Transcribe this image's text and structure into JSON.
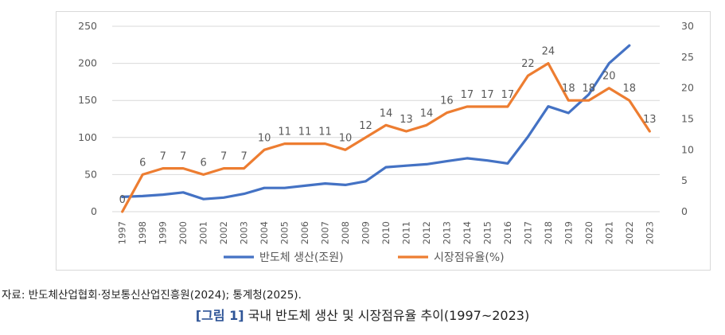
{
  "chart_data": {
    "type": "line",
    "categories": [
      "1997",
      "1998",
      "1999",
      "2000",
      "2001",
      "2002",
      "2003",
      "2004",
      "2005",
      "2006",
      "2007",
      "2008",
      "2009",
      "2010",
      "2011",
      "2012",
      "2013",
      "2014",
      "2015",
      "2016",
      "2017",
      "2018",
      "2019",
      "2020",
      "2021",
      "2022",
      "2023"
    ],
    "series": [
      {
        "name": "반도체 생산(조원)",
        "axis": "left",
        "color": "#4472c4",
        "values": [
          20,
          21,
          23,
          26,
          17,
          19,
          24,
          32,
          32,
          35,
          38,
          36,
          41,
          60,
          62,
          64,
          68,
          72,
          69,
          65,
          101,
          142,
          133,
          158,
          200,
          224,
          null
        ]
      },
      {
        "name": "시장점유율(%)",
        "axis": "right",
        "color": "#ed7d31",
        "values": [
          0,
          6,
          7,
          7,
          6,
          7,
          7,
          10,
          11,
          11,
          11,
          10,
          12,
          14,
          13,
          14,
          16,
          17,
          17,
          17,
          22,
          24,
          18,
          18,
          20,
          18,
          13
        ],
        "labels": [
          "0",
          "6",
          "7",
          "7",
          "6",
          "7",
          "7",
          "10",
          "11",
          "11",
          "11",
          "10",
          "12",
          "14",
          "13",
          "14",
          "16",
          "17",
          "17",
          "17",
          "22",
          "24",
          "18",
          "18",
          "20",
          "18",
          "13"
        ]
      }
    ],
    "y_left": {
      "ylim": [
        0,
        250
      ],
      "ticks": [
        "0",
        "50",
        "100",
        "150",
        "200",
        "250"
      ]
    },
    "y_right": {
      "ylim": [
        0,
        30
      ],
      "ticks": [
        "0",
        "5",
        "10",
        "15",
        "20",
        "25",
        "30"
      ]
    },
    "legend_position": "bottom",
    "grid": true
  },
  "source_text": "자료: 반도체산업협회·정보통신산업진흥원(2024); 통계청(2025).",
  "caption": {
    "number": "[그림 1]",
    "text": "국내 반도체 생산 및 시장점유율 추이(1997~2023)"
  }
}
